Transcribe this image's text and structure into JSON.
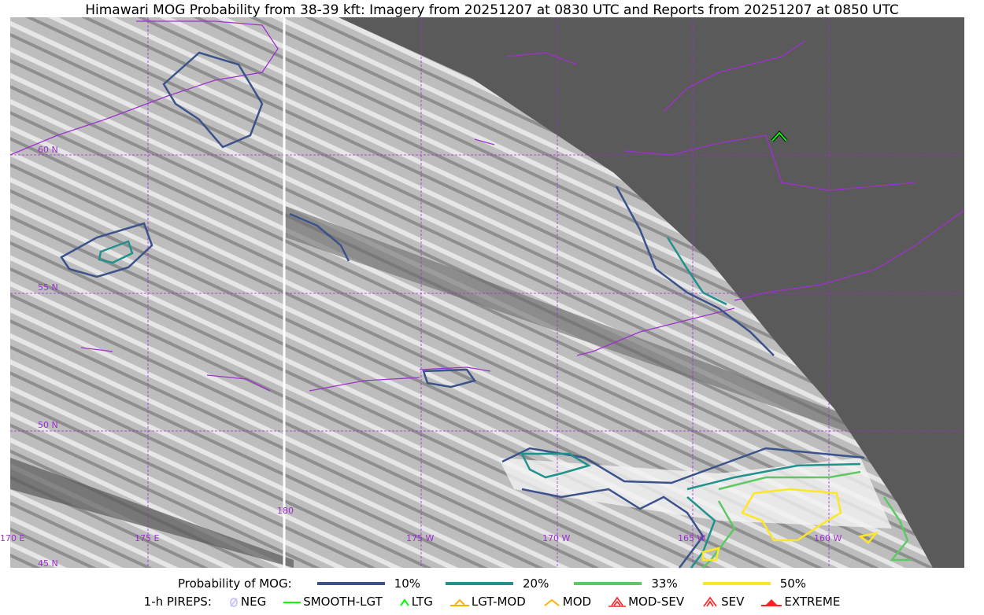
{
  "title": "Himawari MOG Probability from 38-39 kft: Imagery from 20251207 at 0830 UTC and Reports from 20251207 at 0850 UTC",
  "map": {
    "lat_labels": [
      "60 N",
      "55 N",
      "50 N",
      "45 N"
    ],
    "lon_labels": [
      "170 E",
      "175 E",
      "180",
      "175 W",
      "170 W",
      "165 W",
      "160 W"
    ],
    "colors": {
      "coastline": "#a030d0",
      "grid": "#a030d0",
      "no_data": "#5a5a5a"
    }
  },
  "legend": {
    "prob_title": "Probability of MOG:",
    "prob_levels": [
      {
        "label": "10%",
        "color": "#3b528b"
      },
      {
        "label": "20%",
        "color": "#21918c"
      },
      {
        "label": "33%",
        "color": "#5ec962"
      },
      {
        "label": "50%",
        "color": "#fde725"
      }
    ],
    "pirep_title": "1-h PIREPS:",
    "pireps": [
      {
        "label": "NEG",
        "color": "#c8c8ff",
        "icon": "neg-icon"
      },
      {
        "label": "SMOOTH-LGT",
        "color": "#00ff00",
        "icon": "smooth-lgt-icon"
      },
      {
        "label": "LTG",
        "color": "#00ff00",
        "icon": "ltg-icon"
      },
      {
        "label": "LGT-MOD",
        "color": "#ffb000",
        "icon": "lgt-mod-icon"
      },
      {
        "label": "MOD",
        "color": "#ffb000",
        "icon": "mod-icon"
      },
      {
        "label": "MOD-SEV",
        "color": "#ff2020",
        "icon": "mod-sev-icon"
      },
      {
        "label": "SEV",
        "color": "#ff2020",
        "icon": "sev-icon"
      },
      {
        "label": "EXTREME",
        "color": "#ff2020",
        "icon": "extreme-icon"
      }
    ]
  }
}
